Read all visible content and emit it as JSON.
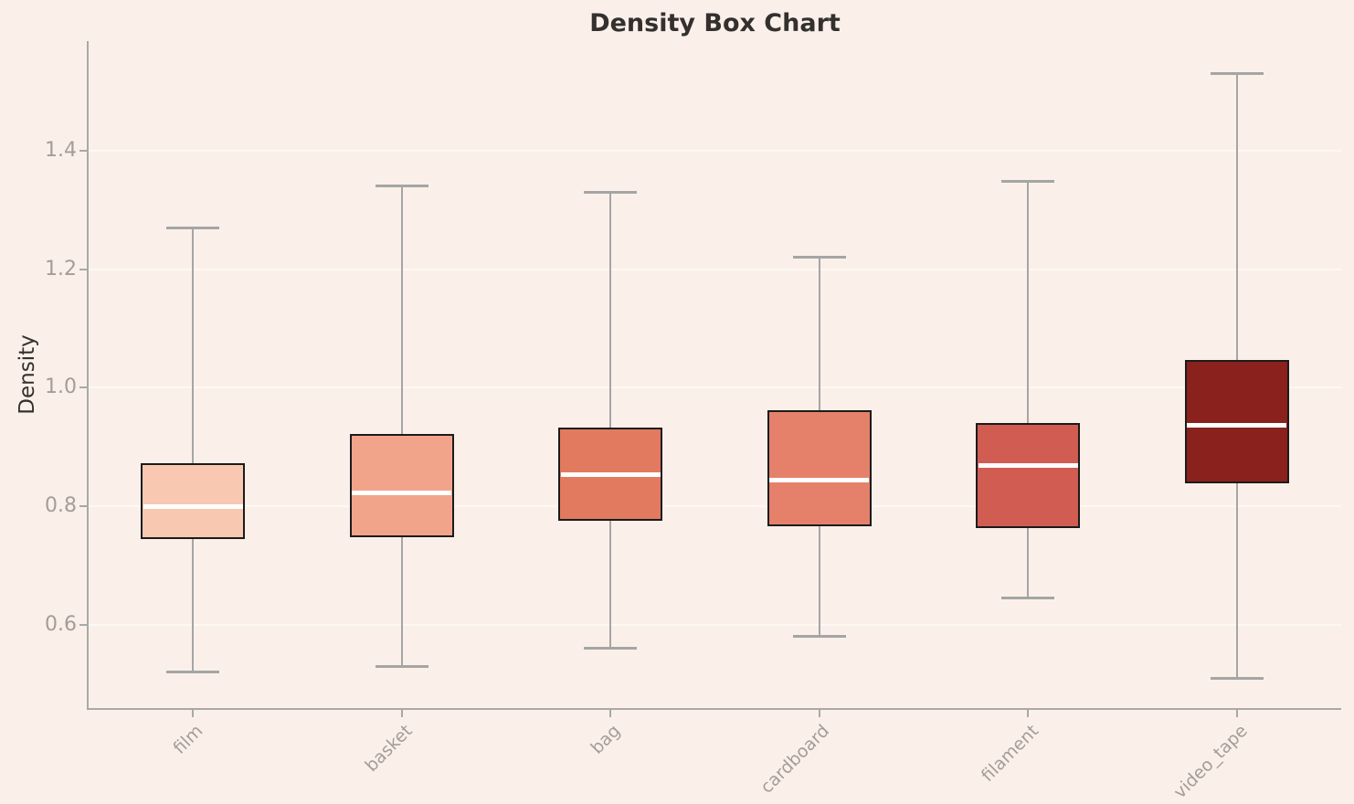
{
  "chart_data": {
    "type": "box",
    "title": "Density Box Chart",
    "ylabel": "Density",
    "xlabel": "",
    "legend": "none",
    "grid": "faint horizontal lines at y ticks",
    "ylim": [
      0.46,
      1.585
    ],
    "yticks": [
      0.6,
      0.8,
      1.0,
      1.2,
      1.4
    ],
    "categories": [
      "film",
      "basket",
      "bag",
      "cardboard",
      "filament",
      "video_tape"
    ],
    "series": [
      {
        "name": "film",
        "whisker_low": 0.52,
        "q1": 0.745,
        "median": 0.8,
        "q3": 0.872,
        "whisker_high": 1.27,
        "color": "#f9c8b1"
      },
      {
        "name": "basket",
        "whisker_low": 0.53,
        "q1": 0.748,
        "median": 0.822,
        "q3": 0.922,
        "whisker_high": 1.34,
        "color": "#f2a48b"
      },
      {
        "name": "bag",
        "whisker_low": 0.56,
        "q1": 0.775,
        "median": 0.854,
        "q3": 0.932,
        "whisker_high": 1.33,
        "color": "#e27a60"
      },
      {
        "name": "cardboard",
        "whisker_low": 0.58,
        "q1": 0.766,
        "median": 0.844,
        "q3": 0.962,
        "whisker_high": 1.22,
        "color": "#e5816a"
      },
      {
        "name": "filament",
        "whisker_low": 0.645,
        "q1": 0.763,
        "median": 0.869,
        "q3": 0.941,
        "whisker_high": 1.348,
        "color": "#d15c52"
      },
      {
        "name": "video_tape",
        "whisker_low": 0.51,
        "q1": 0.839,
        "median": 0.937,
        "q3": 1.047,
        "whisker_high": 1.53,
        "color": "#8a211d"
      }
    ],
    "colors": {
      "background": "#fbf0e9",
      "axis": "#a8a8a8",
      "gridline": "#fdf8f3",
      "tick_label": "#a39d99",
      "title_text": "#33302e",
      "box_edge": "#1b1b1b",
      "whisker": "#a5a5a5",
      "median": "#ffffff"
    }
  }
}
